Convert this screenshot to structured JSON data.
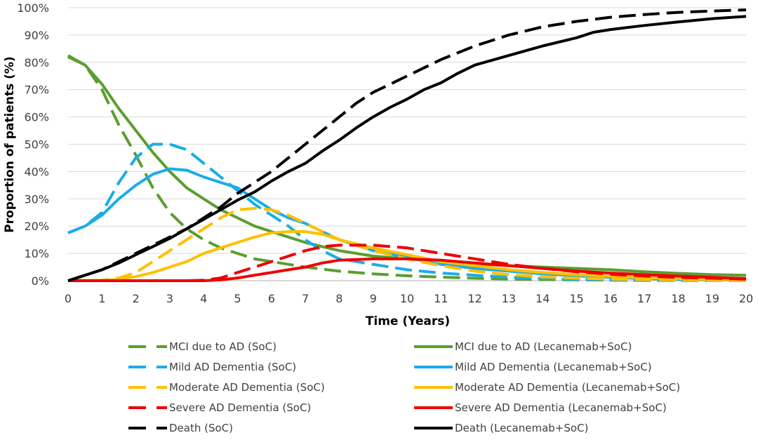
{
  "chart_data": {
    "type": "line",
    "xlabel": "Time (Years)",
    "ylabel": "Proportion of patients (%)",
    "xlim": [
      0,
      20
    ],
    "ylim": [
      0,
      100
    ],
    "x_ticks": [
      "0",
      "1",
      "2",
      "3",
      "4",
      "5",
      "6",
      "7",
      "8",
      "9",
      "10",
      "11",
      "12",
      "13",
      "14",
      "15",
      "16",
      "17",
      "18",
      "19",
      "20"
    ],
    "y_ticks": [
      "0%",
      "10%",
      "20%",
      "30%",
      "40%",
      "50%",
      "60%",
      "70%",
      "80%",
      "90%",
      "100%"
    ],
    "grid": "horizontal",
    "legend_position": "bottom",
    "series": [
      {
        "name": "MCI due to AD (SoC)",
        "color": "#5A9E2F",
        "dash": "dashed",
        "x": [
          0,
          0.5,
          1,
          1.5,
          2,
          2.5,
          3,
          3.5,
          4,
          4.5,
          5,
          5.5,
          6,
          6.5,
          7,
          8,
          9,
          10,
          11,
          12,
          13,
          14,
          15,
          16,
          17,
          18,
          19,
          20
        ],
        "y": [
          82,
          79,
          70,
          57,
          46,
          34,
          25,
          19,
          15,
          12,
          10,
          8,
          7,
          6,
          5,
          3.5,
          2.5,
          1.8,
          1.3,
          0.9,
          0.6,
          0.4,
          0.3,
          0.2,
          0.1,
          0.1,
          0.1,
          0.1
        ]
      },
      {
        "name": "MCI due to AD (Lecanemab+SoC)",
        "color": "#5A9E2F",
        "dash": "solid",
        "x": [
          0,
          0.5,
          1,
          1.5,
          2,
          2.5,
          3,
          3.5,
          4,
          4.5,
          5,
          5.5,
          6,
          6.5,
          7,
          7.5,
          8,
          9,
          10,
          11,
          12,
          13,
          14,
          15,
          16,
          17,
          18,
          19,
          20
        ],
        "y": [
          82.5,
          79,
          72,
          63,
          55,
          47,
          40,
          34,
          30,
          26,
          23,
          20,
          18,
          16,
          14,
          12.5,
          11,
          9,
          8,
          7,
          6.2,
          5.5,
          5,
          4.5,
          4,
          3.3,
          2.7,
          2.2,
          2
        ]
      },
      {
        "name": "Mild AD Dementia (SoC)",
        "color": "#1AADE8",
        "dash": "dashed",
        "x": [
          0,
          0.5,
          1,
          1.5,
          2,
          2.5,
          3,
          3.5,
          4,
          4.5,
          5,
          5.5,
          6,
          6.5,
          7,
          7.5,
          8,
          9,
          10,
          11,
          12,
          13,
          14,
          15,
          16,
          17,
          18,
          19,
          20
        ],
        "y": [
          17.5,
          20,
          25,
          36,
          45,
          50,
          50,
          48,
          43,
          38,
          33,
          28,
          24,
          20,
          15,
          11,
          8,
          6,
          4,
          2.8,
          2,
          1.3,
          0.8,
          0.5,
          0.3,
          0.2,
          0.1,
          0.1,
          0.1
        ]
      },
      {
        "name": "Mild AD Dementia (Lecanemab+SoC)",
        "color": "#1AADE8",
        "dash": "solid",
        "x": [
          0,
          0.5,
          1,
          1.5,
          2,
          2.5,
          3,
          3.5,
          4,
          4.5,
          5,
          5.5,
          6,
          6.5,
          7,
          7.5,
          8,
          9,
          10,
          11,
          12,
          13,
          14,
          15,
          16,
          17,
          18,
          19,
          20
        ],
        "y": [
          17.5,
          20,
          24,
          30,
          35,
          39,
          41,
          40.5,
          38,
          36,
          34,
          30,
          26,
          23,
          21,
          18,
          15,
          11,
          8.5,
          6,
          4.5,
          3.5,
          2.5,
          1.8,
          1.2,
          0.8,
          0.5,
          0.3,
          0.2
        ]
      },
      {
        "name": "Moderate AD Dementia (SoC)",
        "color": "#FFC000",
        "dash": "dashed",
        "x": [
          0,
          1,
          1.5,
          2,
          2.5,
          3,
          3.5,
          4,
          4.5,
          5,
          5.5,
          6,
          6.5,
          7,
          7.5,
          8,
          9,
          10,
          11,
          12,
          13,
          14,
          15,
          16,
          17,
          18,
          19,
          20
        ],
        "y": [
          0,
          0.2,
          1,
          3,
          7,
          11,
          15,
          19,
          23,
          26,
          26.5,
          26,
          24,
          21,
          18,
          15,
          11,
          8,
          5.5,
          3.5,
          2.2,
          1.4,
          0.9,
          0.6,
          0.4,
          0.3,
          0.2,
          0.1
        ]
      },
      {
        "name": "Moderate AD Dementia (Lecanemab+SoC)",
        "color": "#FFC000",
        "dash": "solid",
        "x": [
          0,
          1,
          1.5,
          2,
          2.5,
          3,
          3.5,
          4,
          4.5,
          5,
          5.5,
          6,
          6.5,
          7,
          7.5,
          8,
          9,
          10,
          11,
          12,
          13,
          14,
          15,
          16,
          17,
          18,
          19,
          20
        ],
        "y": [
          0,
          0.1,
          0.5,
          1.5,
          3,
          5,
          7,
          10,
          12,
          14,
          16,
          17.5,
          18,
          18,
          17,
          15,
          12,
          9.5,
          7,
          5.5,
          4,
          3,
          2.2,
          1.6,
          1.1,
          0.8,
          0.5,
          0.3
        ]
      },
      {
        "name": "Severe AD Dementia (SoC)",
        "color": "#EE0000",
        "dash": "dashed",
        "x": [
          0,
          1,
          2,
          3,
          3.5,
          4,
          4.5,
          5,
          5.5,
          6,
          6.5,
          7,
          7.5,
          8,
          9,
          10,
          11,
          12,
          13,
          14,
          15,
          16,
          17,
          18,
          19,
          20
        ],
        "y": [
          0,
          0,
          0,
          0,
          0,
          0.2,
          1,
          3,
          5,
          7,
          9,
          11,
          12.5,
          13,
          13,
          12,
          10,
          8,
          6,
          4.5,
          3.3,
          2.4,
          1.7,
          1.2,
          0.9,
          0.6
        ]
      },
      {
        "name": "Severe AD Dementia (Lecanemab+SoC)",
        "color": "#EE0000",
        "dash": "solid",
        "x": [
          0,
          1,
          2,
          3,
          4,
          4.5,
          5,
          5.5,
          6,
          6.5,
          7,
          7.5,
          8,
          9,
          10,
          11,
          12,
          13,
          14,
          15,
          16,
          17,
          18,
          19,
          20
        ],
        "y": [
          0,
          0,
          0,
          0,
          0,
          0.3,
          1,
          2,
          3,
          4,
          5,
          6.5,
          7.5,
          8,
          8,
          7.5,
          6.5,
          5.5,
          4.5,
          3.5,
          2.8,
          2.2,
          1.7,
          1.2,
          0.8
        ]
      },
      {
        "name": "Death (SoC)",
        "color": "#000000",
        "dash": "dashed",
        "x": [
          0,
          0.5,
          1,
          1.5,
          2,
          2.5,
          3,
          3.5,
          4,
          4.5,
          5,
          5.5,
          6,
          6.5,
          7,
          7.5,
          8,
          8.5,
          9,
          10,
          11,
          12,
          13,
          14,
          15,
          16,
          17,
          18,
          19,
          20
        ],
        "y": [
          0,
          2,
          4,
          7,
          10,
          13,
          16,
          19,
          23,
          27,
          32,
          36,
          40,
          45,
          50,
          55,
          60,
          65,
          69,
          75,
          81,
          86,
          90,
          93,
          95,
          96.5,
          97.5,
          98.3,
          98.8,
          99.2
        ]
      },
      {
        "name": "Death (Lecanemab+SoC)",
        "color": "#000000",
        "dash": "solid",
        "x": [
          0,
          0.5,
          1,
          1.5,
          2,
          2.5,
          3,
          3.5,
          4,
          4.5,
          5,
          5.5,
          6,
          6.5,
          7,
          7.5,
          8,
          8.5,
          9,
          9.5,
          10,
          10.5,
          11,
          11.5,
          12,
          13,
          14,
          15,
          15.5,
          16,
          17,
          18,
          19,
          20
        ],
        "y": [
          0,
          2,
          4,
          6.5,
          9.5,
          12.5,
          15.5,
          19,
          22.5,
          26,
          29.5,
          32.5,
          36.5,
          40,
          43,
          47.5,
          51.5,
          56,
          60,
          63.5,
          66.5,
          70,
          72.5,
          76,
          79,
          82.5,
          86,
          89,
          91,
          92,
          93.5,
          94.8,
          96,
          96.8
        ]
      }
    ]
  }
}
